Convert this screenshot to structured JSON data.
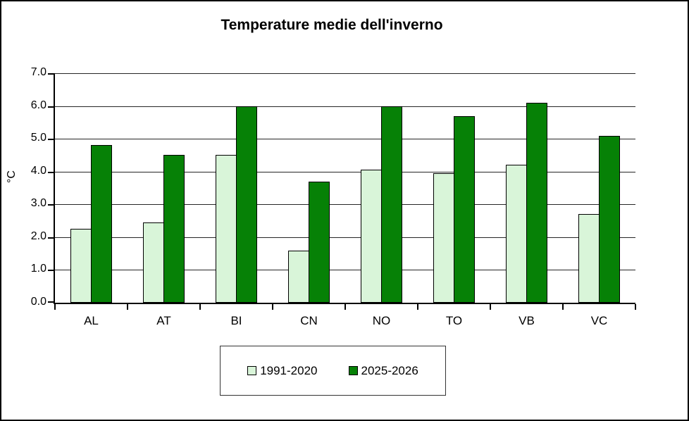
{
  "chart_data": {
    "type": "bar",
    "title": "Temperature medie dell'inverno",
    "ylabel": "°C",
    "xlabel": "",
    "categories": [
      "AL",
      "AT",
      "BI",
      "CN",
      "NO",
      "TO",
      "VB",
      "VC"
    ],
    "series": [
      {
        "name": "1991-2020",
        "color": "#d9f5d9",
        "values": [
          2.25,
          2.45,
          4.5,
          1.6,
          4.05,
          3.95,
          4.2,
          2.7
        ]
      },
      {
        "name": "2025-2026",
        "color": "#068106",
        "values": [
          4.8,
          4.5,
          6.0,
          3.7,
          6.0,
          5.7,
          6.1,
          5.1
        ]
      }
    ],
    "ylim": [
      0,
      7
    ],
    "ytick_step": 1.0,
    "ytick_labels": [
      "0.0",
      "1.0",
      "2.0",
      "3.0",
      "4.0",
      "5.0",
      "6.0",
      "7.0"
    ],
    "grid": true,
    "legend_position": "bottom-center",
    "colors": {
      "background": "#ffffff",
      "axis": "#000000",
      "gridline": "#262626",
      "frame_border": "#000000"
    }
  }
}
